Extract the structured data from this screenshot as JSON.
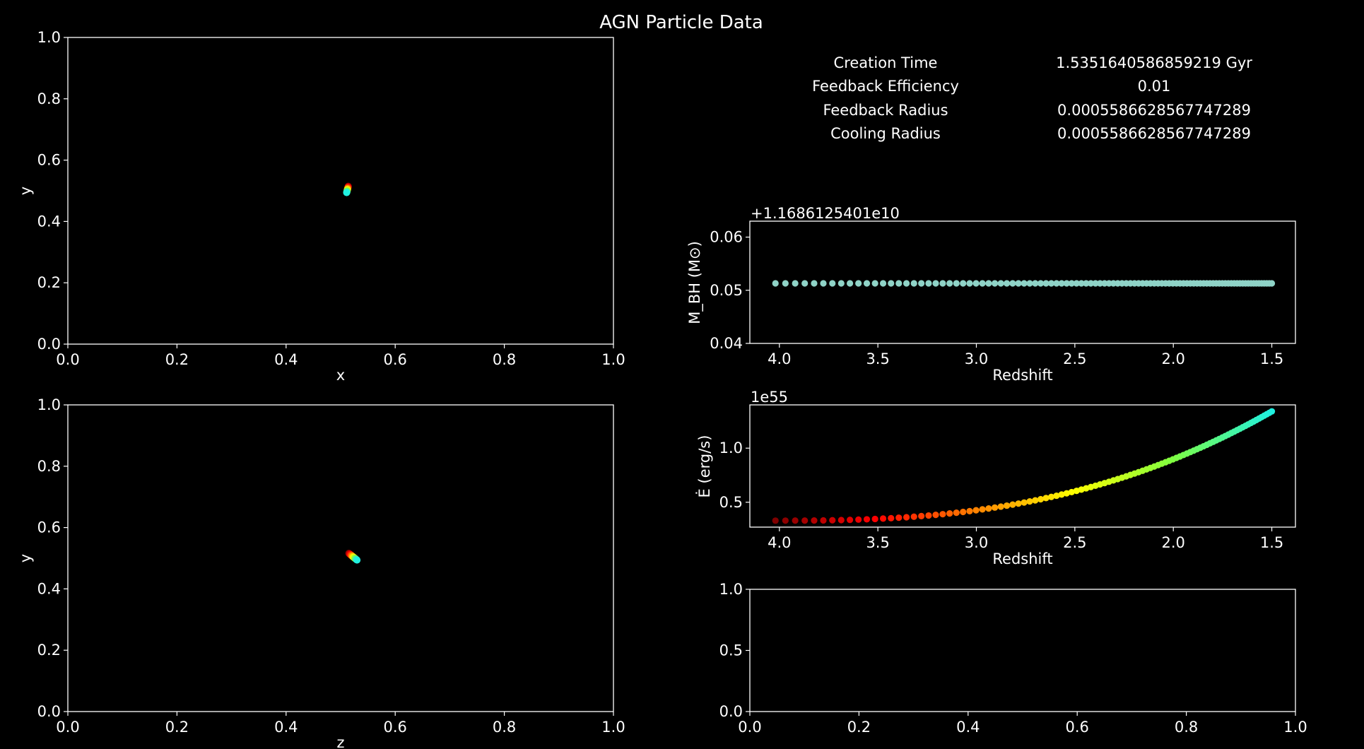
{
  "title": "AGN Particle Data",
  "info_table": [
    {
      "key": "Creation Time",
      "value": "1.5351640586859219 Gyr"
    },
    {
      "key": "Feedback Efficiency",
      "value": "0.01"
    },
    {
      "key": "Feedback Radius",
      "value": "0.0005586628567747289"
    },
    {
      "key": "Cooling Radius",
      "value": "0.0005586628567747289"
    }
  ],
  "chart_data": [
    {
      "id": "xy",
      "type": "scatter",
      "xlabel": "x",
      "ylabel": "y",
      "xlim": [
        0,
        1
      ],
      "ylim": [
        0,
        1
      ],
      "xticks": [
        "0.0",
        "0.2",
        "0.4",
        "0.6",
        "0.8",
        "1.0"
      ],
      "yticks": [
        "0.0",
        "0.2",
        "0.4",
        "0.6",
        "0.8",
        "1.0"
      ],
      "colormap": [
        "#800000",
        "#ff0000",
        "#ff8000",
        "#ffff00",
        "#80ff40",
        "#20f0e0"
      ],
      "x_start": 0.514,
      "y_start": 0.515,
      "x_end": 0.511,
      "y_end": 0.494,
      "n_points": 25
    },
    {
      "id": "zy",
      "type": "scatter",
      "xlabel": "z",
      "ylabel": "y",
      "xlim": [
        0,
        1
      ],
      "ylim": [
        0,
        1
      ],
      "xticks": [
        "0.0",
        "0.2",
        "0.4",
        "0.6",
        "0.8",
        "1.0"
      ],
      "yticks": [
        "0.0",
        "0.2",
        "0.4",
        "0.6",
        "0.8",
        "1.0"
      ],
      "colormap": [
        "#800000",
        "#ff0000",
        "#ff8000",
        "#ffff00",
        "#80ff40",
        "#20f0e0"
      ],
      "x_start": 0.515,
      "y_start": 0.516,
      "x_end": 0.53,
      "y_end": 0.494,
      "n_points": 25
    },
    {
      "id": "mass",
      "type": "scatter",
      "xlabel": "Redshift",
      "ylabel": "M_BH (M⊙)",
      "offset_text": "+1.1686125401e10",
      "xlim": [
        4.15,
        1.38
      ],
      "ylim": [
        0.04,
        0.063
      ],
      "xticks": [
        4.0,
        3.5,
        3.0,
        2.5,
        2.0,
        1.5
      ],
      "xtick_labels": [
        "4.0",
        "3.5",
        "3.0",
        "2.5",
        "2.0",
        "1.5"
      ],
      "yticks": [
        0.04,
        0.05,
        0.06
      ],
      "ytick_labels": [
        "0.04",
        "0.05",
        "0.06"
      ],
      "point_color": "#8fd3c7",
      "z_start": 4.02,
      "z_end": 1.5,
      "n_points": 100,
      "y_value": 0.0513
    },
    {
      "id": "edot",
      "type": "scatter",
      "xlabel": "Redshift",
      "ylabel": "Ė (erg/s)",
      "offset_text": "1e55",
      "xlim": [
        4.15,
        1.38
      ],
      "ylim": [
        0.27,
        1.4
      ],
      "xticks": [
        4.0,
        3.5,
        3.0,
        2.5,
        2.0,
        1.5
      ],
      "xtick_labels": [
        "4.0",
        "3.5",
        "3.0",
        "2.5",
        "2.0",
        "1.5"
      ],
      "yticks": [
        0.5,
        1.0
      ],
      "ytick_labels": [
        "0.5",
        "1.0"
      ],
      "colormap": [
        "#800000",
        "#ff0000",
        "#ff8000",
        "#ffff00",
        "#80ff40",
        "#20f0e0"
      ],
      "z_start": 4.02,
      "z_end": 1.5,
      "n_points": 100,
      "y_start": 0.33,
      "y_end": 1.34,
      "curve_power": 2.6
    },
    {
      "id": "empty",
      "type": "scatter",
      "xlabel": "",
      "ylabel": "",
      "xlim": [
        0,
        1
      ],
      "ylim": [
        0,
        1
      ],
      "xticks": [
        "0.0",
        "0.2",
        "0.4",
        "0.6",
        "0.8",
        "1.0"
      ],
      "yticks": [
        "0.0",
        "0.5",
        "1.0"
      ]
    }
  ]
}
